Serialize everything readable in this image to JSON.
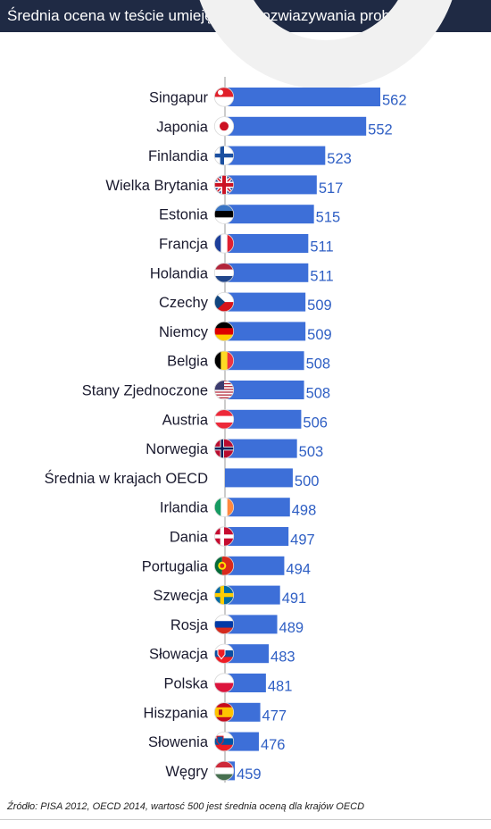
{
  "header": {
    "title": "Średnia ocena w teście umiejętności rozwiazywania problemów"
  },
  "chart_data": {
    "type": "bar",
    "orientation": "horizontal",
    "title": "Średnia ocena w teście umiejętności rozwiazywania problemów",
    "categories": [
      "Singapur",
      "Japonia",
      "Finlandia",
      "Wielka Brytania",
      "Estonia",
      "Francja",
      "Holandia",
      "Czechy",
      "Niemcy",
      "Belgia",
      "Stany Zjednoczone",
      "Austria",
      "Norwegia",
      "Średnia w krajach OECD",
      "Irlandia",
      "Dania",
      "Portugalia",
      "Szwecja",
      "Rosja",
      "Słowacja",
      "Polska",
      "Hiszpania",
      "Słowenia",
      "Węgry"
    ],
    "values": [
      562,
      552,
      523,
      517,
      515,
      511,
      511,
      509,
      509,
      508,
      508,
      506,
      503,
      500,
      498,
      497,
      494,
      491,
      489,
      483,
      481,
      477,
      476,
      459
    ],
    "flags": [
      "singapore-flag",
      "japan-flag",
      "finland-flag",
      "uk-flag",
      "estonia-flag",
      "france-flag",
      "netherlands-flag",
      "czech-flag",
      "germany-flag",
      "belgium-flag",
      "usa-flag",
      "austria-flag",
      "norway-flag",
      "",
      "ireland-flag",
      "denmark-flag",
      "portugal-flag",
      "sweden-flag",
      "russia-flag",
      "slovakia-flag",
      "poland-flag",
      "spain-flag",
      "slovenia-flag",
      "hungary-flag"
    ],
    "bar_color": "#3d6fd8",
    "value_label_color": "#2f5fc4"
  },
  "footer": {
    "source": "Źródło: PISA 2012, OECD 2014, wartosć 500 jest średnia oceną dla krajów OECD"
  }
}
